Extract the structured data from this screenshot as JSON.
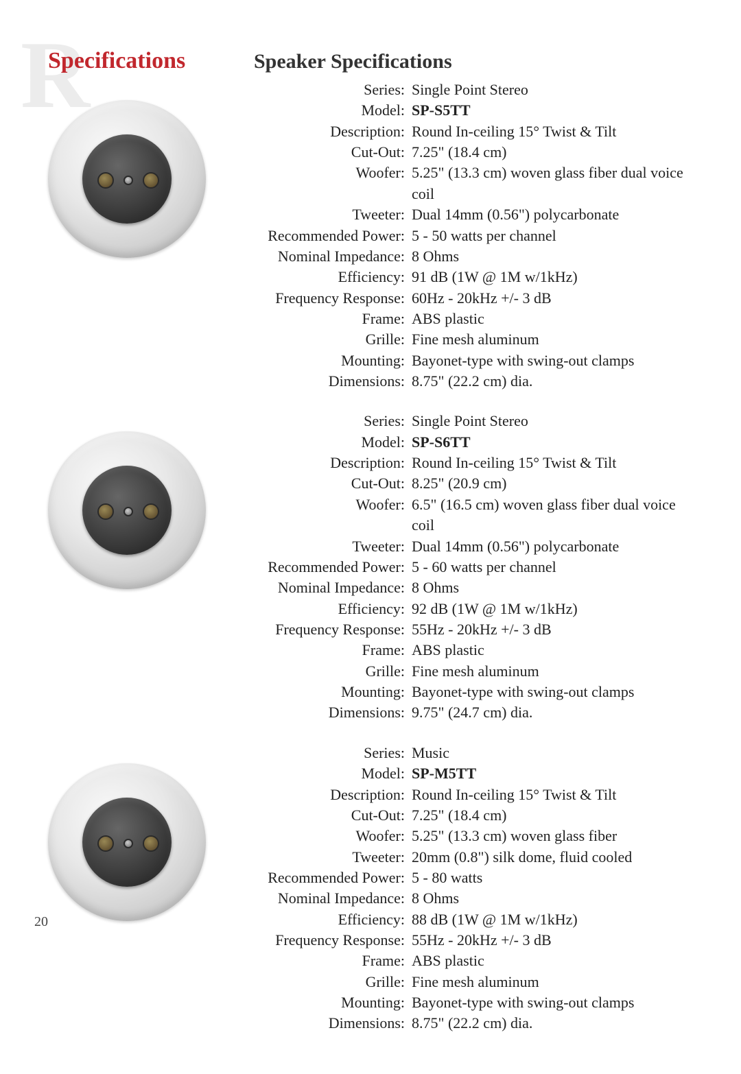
{
  "watermark": "R",
  "sideTitle": "Specifications",
  "mainTitle": "Speaker Specifications",
  "pageNumber": "20",
  "colors": {
    "accent": "#c1272d",
    "text": "#222222",
    "watermark": "#ececec",
    "background": "#ffffff"
  },
  "products": [
    {
      "rows": [
        {
          "label": "Series:",
          "value": "Single Point Stereo",
          "bold": false
        },
        {
          "label": "Model:",
          "value": "SP-S5TT",
          "bold": true
        },
        {
          "label": "Description:",
          "value": "Round In-ceiling 15° Twist & Tilt",
          "bold": false
        },
        {
          "label": "Cut-Out:",
          "value": "7.25\" (18.4 cm)",
          "bold": false
        },
        {
          "label": "Woofer:",
          "value": "5.25\" (13.3 cm) woven glass fiber dual voice coil",
          "bold": false
        },
        {
          "label": "Tweeter:",
          "value": "Dual 14mm (0.56\") polycarbonate",
          "bold": false
        },
        {
          "label": "Recommended Power:",
          "value": "5 - 50 watts per channel",
          "bold": false
        },
        {
          "label": "Nominal Impedance:",
          "value": "8 Ohms",
          "bold": false
        },
        {
          "label": "Efficiency:",
          "value": "91 dB (1W @ 1M w/1kHz)",
          "bold": false
        },
        {
          "label": "Frequency Response:",
          "value": "60Hz - 20kHz +/- 3 dB",
          "bold": false
        },
        {
          "label": "Frame:",
          "value": "ABS plastic",
          "bold": false
        },
        {
          "label": "Grille:",
          "value": "Fine mesh aluminum",
          "bold": false
        },
        {
          "label": "Mounting:",
          "value": "Bayonet-type with swing-out clamps",
          "bold": false
        },
        {
          "label": "Dimensions:",
          "value": "8.75\" (22.2 cm) dia.",
          "bold": false
        }
      ]
    },
    {
      "rows": [
        {
          "label": "Series:",
          "value": "Single Point Stereo",
          "bold": false
        },
        {
          "label": "Model:",
          "value": "SP-S6TT",
          "bold": true
        },
        {
          "label": "Description:",
          "value": "Round In-ceiling 15° Twist & Tilt",
          "bold": false
        },
        {
          "label": "Cut-Out:",
          "value": "8.25\" (20.9 cm)",
          "bold": false
        },
        {
          "label": "Woofer:",
          "value": "6.5\" (16.5 cm) woven glass fiber dual voice coil",
          "bold": false
        },
        {
          "label": "Tweeter:",
          "value": "Dual 14mm (0.56\") polycarbonate",
          "bold": false
        },
        {
          "label": "Recommended Power:",
          "value": "5 - 60 watts per channel",
          "bold": false
        },
        {
          "label": "Nominal Impedance:",
          "value": "8 Ohms",
          "bold": false
        },
        {
          "label": "Efficiency:",
          "value": "92 dB (1W @ 1M w/1kHz)",
          "bold": false
        },
        {
          "label": "Frequency Response:",
          "value": "55Hz - 20kHz +/- 3 dB",
          "bold": false
        },
        {
          "label": "Frame:",
          "value": "ABS plastic",
          "bold": false
        },
        {
          "label": "Grille:",
          "value": "Fine mesh aluminum",
          "bold": false
        },
        {
          "label": "Mounting:",
          "value": "Bayonet-type with swing-out clamps",
          "bold": false
        },
        {
          "label": "Dimensions:",
          "value": "9.75\" (24.7 cm) dia.",
          "bold": false
        }
      ]
    },
    {
      "rows": [
        {
          "label": "Series:",
          "value": "Music",
          "bold": false
        },
        {
          "label": "Model:",
          "value": "SP-M5TT",
          "bold": true
        },
        {
          "label": "Description:",
          "value": "Round In-ceiling 15° Twist & Tilt",
          "bold": false
        },
        {
          "label": "Cut-Out:",
          "value": "7.25\" (18.4 cm)",
          "bold": false
        },
        {
          "label": "Woofer:",
          "value": "5.25\" (13.3 cm) woven glass fiber",
          "bold": false
        },
        {
          "label": "Tweeter:",
          "value": "20mm (0.8\") silk dome, fluid cooled",
          "bold": false
        },
        {
          "label": "Recommended Power:",
          "value": "5 - 80 watts",
          "bold": false
        },
        {
          "label": "Nominal Impedance:",
          "value": "8 Ohms",
          "bold": false
        },
        {
          "label": "Efficiency:",
          "value": "88 dB (1W @ 1M w/1kHz)",
          "bold": false
        },
        {
          "label": "Frequency Response:",
          "value": "55Hz - 20kHz +/- 3 dB",
          "bold": false
        },
        {
          "label": "Frame:",
          "value": "ABS plastic",
          "bold": false
        },
        {
          "label": "Grille:",
          "value": "Fine mesh aluminum",
          "bold": false
        },
        {
          "label": "Mounting:",
          "value": "Bayonet-type with swing-out clamps",
          "bold": false
        },
        {
          "label": "Dimensions:",
          "value": "8.75\" (22.2 cm) dia.",
          "bold": false
        }
      ]
    }
  ]
}
